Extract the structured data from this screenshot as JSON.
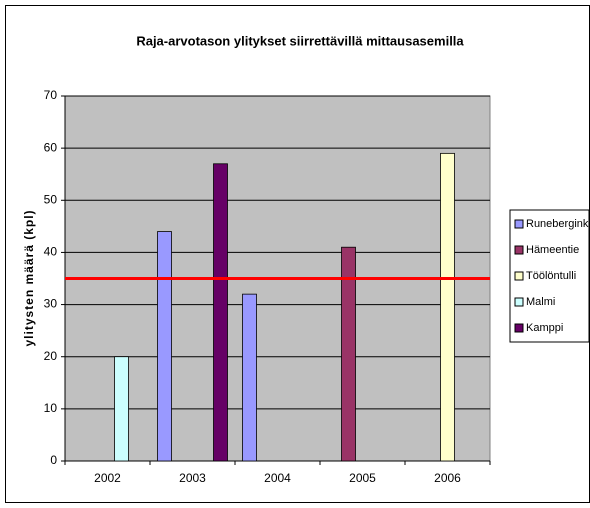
{
  "chart_data": {
    "type": "bar",
    "title": "Raja-arvotason ylitykset siirrettävillä mittausasemilla",
    "y_label": "ylitysten määrä (kpl)",
    "categories": [
      "2002",
      "2003",
      "2004",
      "2005",
      "2006"
    ],
    "series": [
      {
        "name": "Runebergink",
        "color": "#9999ff",
        "values": [
          null,
          44,
          32,
          null,
          null
        ]
      },
      {
        "name": "Hämeentie",
        "color": "#993366",
        "values": [
          null,
          null,
          null,
          41,
          null
        ]
      },
      {
        "name": "Töölöntulli",
        "color": "#ffffcc",
        "values": [
          null,
          null,
          null,
          null,
          59
        ]
      },
      {
        "name": "Malmi",
        "color": "#ccffff",
        "values": [
          20,
          null,
          null,
          null,
          null
        ]
      },
      {
        "name": "Kamppi",
        "color": "#660066",
        "values": [
          null,
          57,
          null,
          null,
          null
        ]
      }
    ],
    "threshold": 35,
    "threshold_color": "#ff0000",
    "ylim": [
      0,
      70
    ],
    "yticks": [
      0,
      10,
      20,
      30,
      40,
      50,
      60,
      70
    ],
    "grid": true,
    "legend": "right",
    "plot_background": "#c0c0c0"
  }
}
